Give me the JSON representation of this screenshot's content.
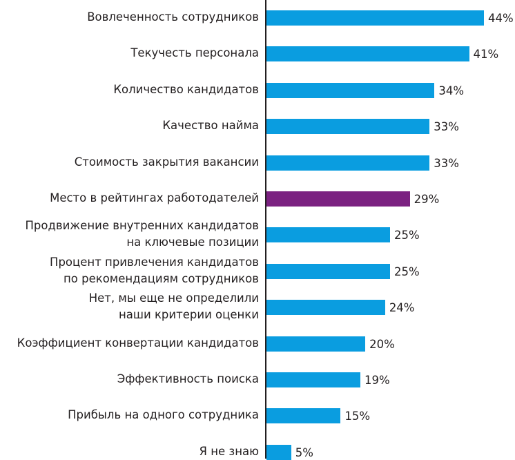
{
  "chart_data": {
    "type": "bar",
    "orientation": "horizontal",
    "categories": [
      "Вовлеченность сотрудников",
      "Текучесть персонала",
      "Количество кандидатов",
      "Качество найма",
      "Стоимость закрытия вакансии",
      "Место в рейтингах работодателей",
      "Продвижение внутренних кандидатов\nна ключевые позиции",
      "Процент привлечения кандидатов\nпо рекомендациям сотрудников",
      "Нет, мы еще не определили\nнаши критерии оценки",
      "Коэффициент конвертации кандидатов",
      "Эффективность поиска",
      "Прибыль на одного сотрудника",
      "Я не знаю"
    ],
    "values": [
      44,
      41,
      34,
      33,
      33,
      29,
      25,
      25,
      24,
      20,
      19,
      15,
      5
    ],
    "value_labels": [
      "44%",
      "41%",
      "34%",
      "33%",
      "33%",
      "29%",
      "25%",
      "25%",
      "24%",
      "20%",
      "19%",
      "15%",
      "5%"
    ],
    "colors": [
      "#0a9de0",
      "#0a9de0",
      "#0a9de0",
      "#0a9de0",
      "#0a9de0",
      "#7b2181",
      "#0a9de0",
      "#0a9de0",
      "#0a9de0",
      "#0a9de0",
      "#0a9de0",
      "#0a9de0",
      "#0a9de0"
    ]
  }
}
